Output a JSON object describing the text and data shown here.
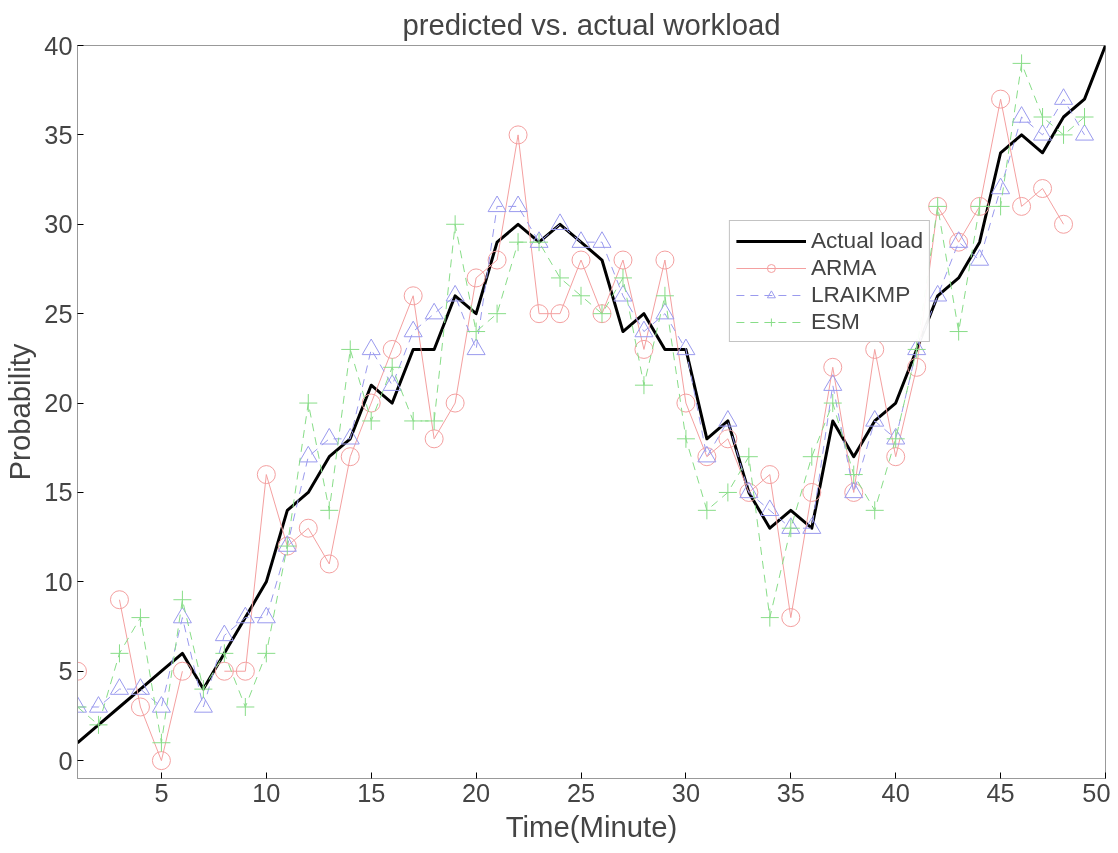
{
  "chart_data": {
    "type": "line",
    "title": "predicted vs. actual workload",
    "xlabel": "Time(Minute)",
    "ylabel": "Probability",
    "x": [
      1,
      2,
      3,
      4,
      5,
      6,
      7,
      8,
      9,
      10,
      11,
      12,
      13,
      14,
      15,
      16,
      17,
      18,
      19,
      20,
      21,
      22,
      23,
      24,
      25,
      26,
      27,
      28,
      29,
      30,
      31,
      32,
      33,
      34,
      35,
      36,
      37,
      38,
      39,
      40,
      41,
      42,
      43,
      44,
      45,
      46,
      47,
      48,
      49,
      50
    ],
    "series": [
      {
        "name": "Actual load",
        "color": "#000000",
        "marker": "none",
        "line_style": "solid",
        "values": [
          1,
          2,
          3,
          4,
          5,
          6,
          4,
          6,
          8,
          10,
          14,
          15,
          17,
          18,
          21,
          20,
          23,
          23,
          26,
          25,
          29,
          30,
          29,
          30,
          29,
          28,
          24,
          25,
          23,
          23,
          18,
          19,
          15,
          13,
          14,
          13,
          19,
          17,
          19,
          20,
          23,
          26,
          27,
          29,
          34,
          35,
          34,
          36,
          37,
          40
        ]
      },
      {
        "name": "ARMA",
        "color": "#f4a0a0",
        "marker": "circle",
        "line_style": "solid",
        "values": [
          5,
          null,
          9,
          3,
          0,
          5,
          null,
          5,
          5,
          16,
          12,
          13,
          11,
          17,
          20,
          23,
          26,
          18,
          20,
          27,
          28,
          35,
          25,
          25,
          28,
          25,
          28,
          23,
          28,
          20,
          17,
          18,
          15,
          16,
          8,
          15,
          22,
          15,
          23,
          17,
          22,
          31,
          29,
          31,
          37,
          31,
          32,
          30,
          null,
          null
        ]
      },
      {
        "name": "LRAIKMP",
        "color": "#9a9aee",
        "marker": "triangle",
        "line_style": "dashed",
        "values": [
          3,
          3,
          4,
          4,
          3,
          8,
          3,
          7,
          8,
          8,
          12,
          17,
          18,
          18,
          23,
          21,
          24,
          25,
          26,
          23,
          31,
          31,
          29,
          30,
          29,
          29,
          26,
          24,
          25,
          23,
          17,
          19,
          15,
          14,
          13,
          13,
          21,
          15,
          19,
          18,
          23,
          26,
          29,
          28,
          32,
          36,
          35,
          37,
          35,
          null
        ]
      },
      {
        "name": "ESM",
        "color": "#88dd88",
        "marker": "cross",
        "line_style": "dashed",
        "values": [
          3,
          2,
          6,
          8,
          1,
          9,
          4,
          6,
          3,
          6,
          12,
          20,
          14,
          23,
          19,
          22,
          19,
          19,
          30,
          24,
          25,
          29,
          29,
          27,
          26,
          25,
          27,
          21,
          26,
          18,
          14,
          15,
          17,
          8,
          13,
          17,
          20,
          16,
          14,
          18,
          23,
          31,
          24,
          31,
          31,
          39,
          36,
          35,
          36,
          null
        ]
      }
    ],
    "xlim": [
      1,
      50
    ],
    "ylim": [
      -1,
      40
    ],
    "xticks": [
      5,
      10,
      15,
      20,
      25,
      30,
      35,
      40,
      45,
      50
    ],
    "yticks": [
      0,
      5,
      10,
      15,
      20,
      25,
      30,
      35,
      40
    ],
    "grid": false,
    "legend": "top right"
  }
}
